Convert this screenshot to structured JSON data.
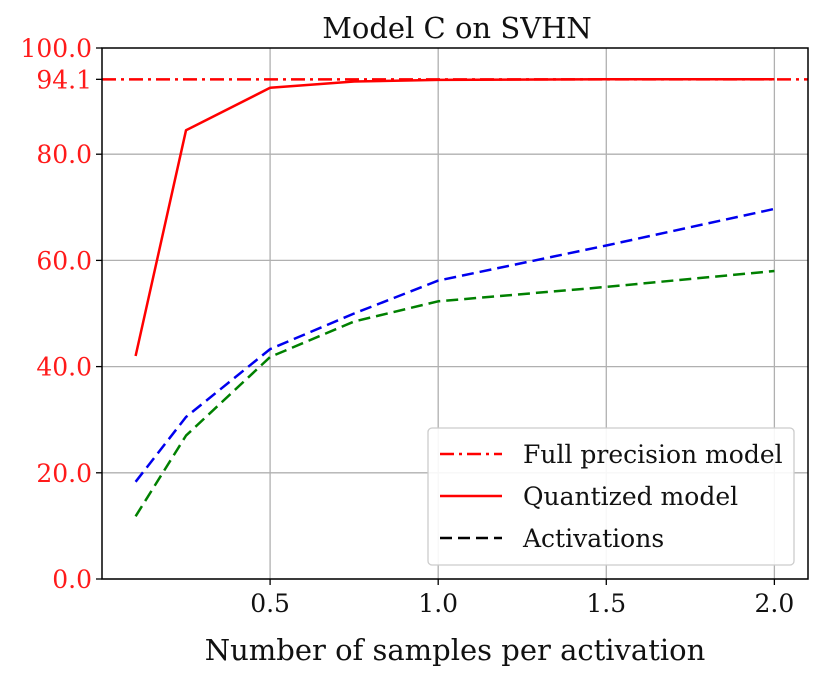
{
  "chart_data": {
    "type": "line",
    "title": "Model C on SVHN",
    "xlabel": "Number of samples per activation",
    "ylabel": "",
    "xlim": [
      0.0,
      2.1
    ],
    "ylim": [
      0,
      100
    ],
    "grid": true,
    "x_ticks": [
      0.5,
      1.0,
      1.5,
      2.0
    ],
    "x_tick_labels": [
      "0.5",
      "1.0",
      "1.5",
      "2.0"
    ],
    "y_ticks": [
      0,
      20,
      40,
      60,
      80,
      94.1,
      100
    ],
    "y_tick_labels": [
      "0.0",
      "20.0",
      "40.0",
      "60.0",
      "80.0",
      "94.1",
      "100.0"
    ],
    "y_tick_color": "#ff1a1a",
    "reference_line": {
      "name": "Full precision model",
      "y": 94.1,
      "color": "#ff0000",
      "style": "dashdot"
    },
    "series": [
      {
        "name": "Quantized model",
        "color": "#ff0000",
        "style": "solid",
        "x": [
          0.1,
          0.25,
          0.5,
          0.75,
          1.0,
          1.5,
          2.0
        ],
        "values": [
          42.0,
          84.5,
          92.5,
          93.7,
          94.0,
          94.1,
          94.1
        ]
      },
      {
        "name": "Activations",
        "color": "#0000ee",
        "style": "dashed",
        "x": [
          0.1,
          0.25,
          0.5,
          0.75,
          1.0,
          1.5,
          2.0
        ],
        "values": [
          18.3,
          30.5,
          43.3,
          50.0,
          56.2,
          62.8,
          69.7
        ]
      },
      {
        "name": "Activations",
        "color": "#008000",
        "style": "dashed",
        "x": [
          0.1,
          0.25,
          0.5,
          0.75,
          1.0,
          1.5,
          2.0
        ],
        "values": [
          11.8,
          27.0,
          41.8,
          48.5,
          52.3,
          55.0,
          58.0
        ]
      }
    ],
    "legend": {
      "placement": "bottom-right",
      "entries": [
        {
          "label": "Full precision model",
          "color": "#ff0000",
          "style": "dashdot"
        },
        {
          "label": "Quantized model",
          "color": "#ff0000",
          "style": "solid"
        },
        {
          "label": "Activations",
          "color": "#000000",
          "style": "dashed"
        }
      ]
    }
  }
}
